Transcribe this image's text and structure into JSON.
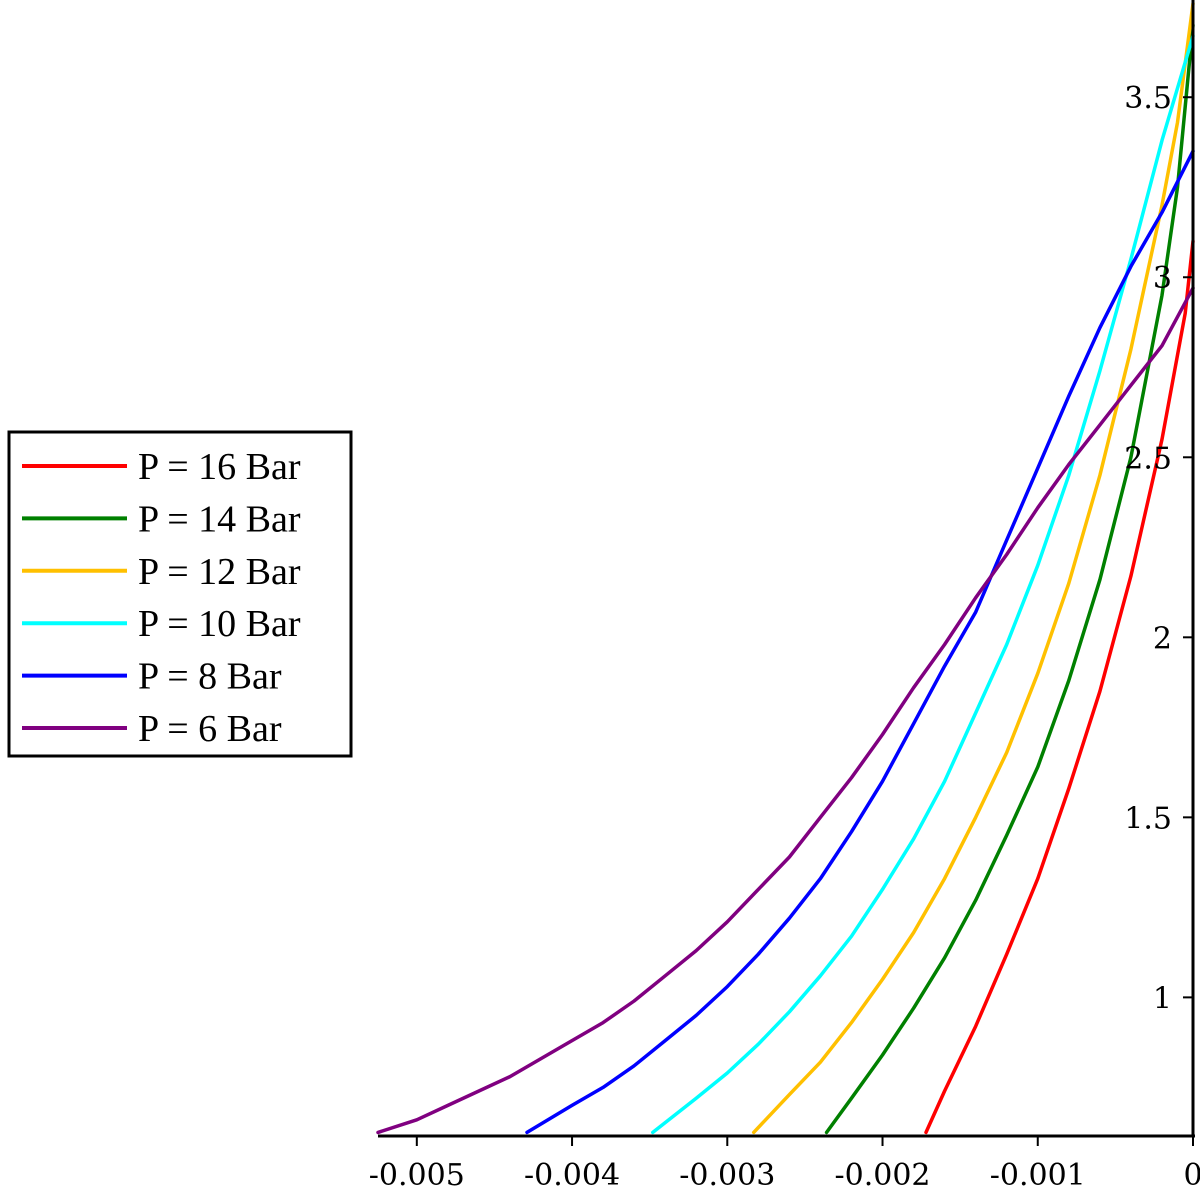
{
  "chart_data": {
    "type": "line",
    "title": "",
    "xlabel": "",
    "ylabel": "",
    "xlim": [
      -0.00525,
      0
    ],
    "ylim": [
      0.615,
      3.77
    ],
    "x_ticks": [
      {
        "value": -0.005,
        "label": "-0.005"
      },
      {
        "value": -0.004,
        "label": "-0.004"
      },
      {
        "value": -0.003,
        "label": "-0.003"
      },
      {
        "value": -0.002,
        "label": "-0.002"
      },
      {
        "value": -0.001,
        "label": "-0.001"
      },
      {
        "value": 0,
        "label": "0"
      }
    ],
    "y_ticks": [
      {
        "value": 1,
        "label": "1"
      },
      {
        "value": 1.5,
        "label": "1.5"
      },
      {
        "value": 2,
        "label": "2"
      },
      {
        "value": 2.5,
        "label": "2.5"
      },
      {
        "value": 3,
        "label": "3"
      },
      {
        "value": 3.5,
        "label": "3.5"
      }
    ],
    "grid": false,
    "legend_position": "left",
    "series": [
      {
        "name": "P = 16 Bar",
        "color": "#ff0000",
        "points": [
          [
            -0.00172,
            0.625
          ],
          [
            -0.0016,
            0.74
          ],
          [
            -0.0014,
            0.92
          ],
          [
            -0.0012,
            1.12
          ],
          [
            -0.001,
            1.33
          ],
          [
            -0.0008,
            1.58
          ],
          [
            -0.0006,
            1.85
          ],
          [
            -0.0004,
            2.17
          ],
          [
            -0.0002,
            2.55
          ],
          [
            -5e-05,
            2.9
          ],
          [
            0,
            3.1
          ]
        ]
      },
      {
        "name": "P = 14 Bar",
        "color": "#008000",
        "points": [
          [
            -0.00236,
            0.625
          ],
          [
            -0.0022,
            0.72
          ],
          [
            -0.002,
            0.84
          ],
          [
            -0.0018,
            0.97
          ],
          [
            -0.0016,
            1.11
          ],
          [
            -0.0014,
            1.27
          ],
          [
            -0.0012,
            1.45
          ],
          [
            -0.001,
            1.64
          ],
          [
            -0.0008,
            1.88
          ],
          [
            -0.0006,
            2.16
          ],
          [
            -0.0004,
            2.5
          ],
          [
            -0.0002,
            2.95
          ],
          [
            -0.0001,
            3.25
          ],
          [
            0,
            3.7
          ]
        ]
      },
      {
        "name": "P = 12 Bar",
        "color": "#ffc000",
        "points": [
          [
            -0.00283,
            0.625
          ],
          [
            -0.0026,
            0.73
          ],
          [
            -0.0024,
            0.82
          ],
          [
            -0.0022,
            0.93
          ],
          [
            -0.002,
            1.05
          ],
          [
            -0.0018,
            1.18
          ],
          [
            -0.0016,
            1.33
          ],
          [
            -0.0014,
            1.5
          ],
          [
            -0.0012,
            1.68
          ],
          [
            -0.001,
            1.9
          ],
          [
            -0.0008,
            2.15
          ],
          [
            -0.0006,
            2.45
          ],
          [
            -0.0004,
            2.8
          ],
          [
            -0.0002,
            3.2
          ],
          [
            -0.0001,
            3.43
          ],
          [
            0,
            3.76
          ]
        ]
      },
      {
        "name": "P = 10 Bar",
        "color": "#00ffff",
        "points": [
          [
            -0.00348,
            0.625
          ],
          [
            -0.0032,
            0.72
          ],
          [
            -0.003,
            0.79
          ],
          [
            -0.0028,
            0.87
          ],
          [
            -0.0026,
            0.96
          ],
          [
            -0.0024,
            1.06
          ],
          [
            -0.0022,
            1.17
          ],
          [
            -0.002,
            1.3
          ],
          [
            -0.0018,
            1.44
          ],
          [
            -0.0016,
            1.6
          ],
          [
            -0.0014,
            1.79
          ],
          [
            -0.0012,
            1.98
          ],
          [
            -0.001,
            2.2
          ],
          [
            -0.0008,
            2.45
          ],
          [
            -0.0006,
            2.74
          ],
          [
            -0.0004,
            3.05
          ],
          [
            -0.0002,
            3.38
          ],
          [
            0,
            3.67
          ]
        ]
      },
      {
        "name": "P = 8 Bar",
        "color": "#0000ff",
        "points": [
          [
            -0.00429,
            0.625
          ],
          [
            -0.004,
            0.7
          ],
          [
            -0.0038,
            0.75
          ],
          [
            -0.0036,
            0.81
          ],
          [
            -0.0034,
            0.88
          ],
          [
            -0.0032,
            0.95
          ],
          [
            -0.003,
            1.03
          ],
          [
            -0.0028,
            1.12
          ],
          [
            -0.0026,
            1.22
          ],
          [
            -0.0024,
            1.33
          ],
          [
            -0.0022,
            1.46
          ],
          [
            -0.002,
            1.6
          ],
          [
            -0.0018,
            1.76
          ],
          [
            -0.0016,
            1.92
          ],
          [
            -0.0014,
            2.07
          ],
          [
            -0.0012,
            2.27
          ],
          [
            -0.001,
            2.47
          ],
          [
            -0.0008,
            2.67
          ],
          [
            -0.0006,
            2.86
          ],
          [
            -0.0004,
            3.03
          ],
          [
            -0.0002,
            3.18
          ],
          [
            0,
            3.35
          ]
        ]
      },
      {
        "name": "P = 6 Bar",
        "color": "#800080",
        "points": [
          [
            -0.00525,
            0.625
          ],
          [
            -0.005,
            0.66
          ],
          [
            -0.0048,
            0.7
          ],
          [
            -0.0046,
            0.74
          ],
          [
            -0.0044,
            0.78
          ],
          [
            -0.0042,
            0.83
          ],
          [
            -0.004,
            0.88
          ],
          [
            -0.0038,
            0.93
          ],
          [
            -0.0036,
            0.99
          ],
          [
            -0.0034,
            1.06
          ],
          [
            -0.0032,
            1.13
          ],
          [
            -0.003,
            1.21
          ],
          [
            -0.0028,
            1.3
          ],
          [
            -0.0026,
            1.39
          ],
          [
            -0.0024,
            1.5
          ],
          [
            -0.0022,
            1.61
          ],
          [
            -0.002,
            1.73
          ],
          [
            -0.0018,
            1.86
          ],
          [
            -0.0016,
            1.98
          ],
          [
            -0.0014,
            2.11
          ],
          [
            -0.0012,
            2.23
          ],
          [
            -0.001,
            2.36
          ],
          [
            -0.0008,
            2.48
          ],
          [
            -0.0006,
            2.59
          ],
          [
            -0.0004,
            2.7
          ],
          [
            -0.0002,
            2.81
          ],
          [
            0,
            2.97
          ]
        ]
      }
    ]
  }
}
